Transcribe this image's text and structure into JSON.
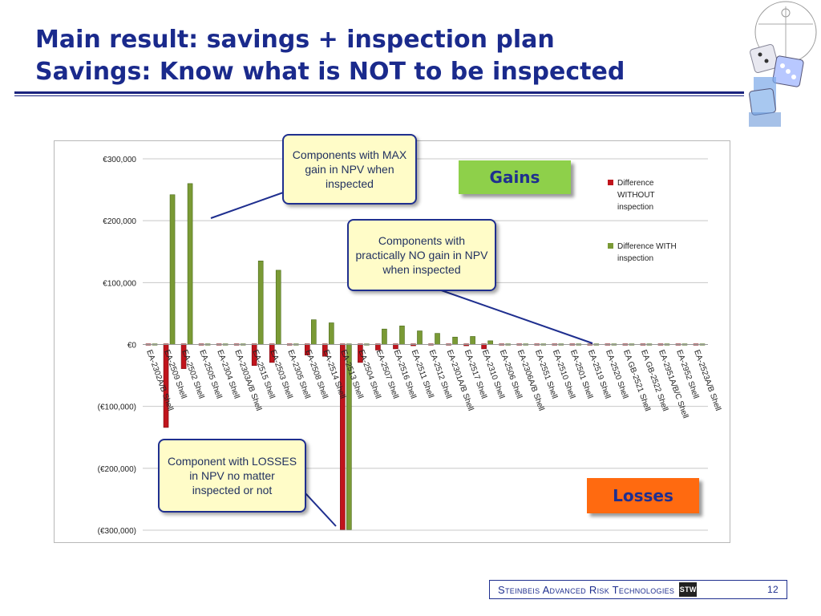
{
  "slide": {
    "title_line1": "Main result: savings + inspection plan",
    "title_line2": "Savings: Know what is NOT to be inspected",
    "page_number": "12",
    "footer_company": "Steinbeis Advanced Risk Technologies",
    "footer_logo_text": "STW"
  },
  "callouts": {
    "max_gain": "Components with MAX gain in NPV when inspected",
    "no_gain": "Components with practically NO gain in NPV when inspected",
    "losses": "Component with LOSSES in NPV no matter inspected or not"
  },
  "tags": {
    "gains": "Gains",
    "losses": "Losses"
  },
  "colors": {
    "without": "#c0141c",
    "with": "#7a9a35",
    "title": "#1a2a8c",
    "callout_border": "#1f2f8f"
  },
  "chart_data": {
    "type": "bar",
    "ylim": [
      -300000,
      300000
    ],
    "yticks": [
      "€300,000",
      "€200,000",
      "€100,000",
      "€0",
      "(€100,000)",
      "(€200,000)",
      "(€300,000)"
    ],
    "grid": true,
    "legend_position": "right",
    "categories": [
      "EA-2302A/B Shell",
      "EA-2509 Shell",
      "EA-2502 Shell",
      "EA-2505 Shell",
      "EA-2304 Shell",
      "EA-2303A/B Shell",
      "EA-2515 Shell",
      "EA-2503 Shell",
      "EA-2305 Shell",
      "EA-2508 Shell",
      "EA-2514 Shell",
      "EA-2513 Shell",
      "EA-2504 Shell",
      "EA-2507 Shell",
      "EA-2516 Shell",
      "EA-2511 Shell",
      "EA-2512 Shell",
      "EA-2301A/B Shell",
      "EA-2517 Shell",
      "EA-2310 Shell",
      "EA-2506 Shell",
      "EA-2306A/B Shell",
      "EA-2551 Shell",
      "EA-2510 Shell",
      "EA-2501 Shell",
      "EA-2519 Shell",
      "EA-2520 Shell",
      "EA GB-2521 Shell",
      "EA GB-2522 Shell",
      "EA-2951A/B/C Shell",
      "EA-2952 Shell",
      "EA-2523A/B Shell"
    ],
    "series": [
      {
        "name": "Difference WITHOUT inspection",
        "values": [
          0,
          -135000,
          -40000,
          0,
          0,
          0,
          -35000,
          -30000,
          0,
          -18000,
          -20000,
          -300000,
          -30000,
          -10000,
          -8000,
          -3000,
          0,
          0,
          -3000,
          -8000,
          0,
          0,
          0,
          0,
          0,
          0,
          0,
          0,
          0,
          0,
          0,
          0
        ]
      },
      {
        "name": "Difference WITH inspection",
        "values": [
          0,
          242000,
          260000,
          0,
          0,
          0,
          135000,
          120000,
          0,
          40000,
          35000,
          -300000,
          0,
          25000,
          30000,
          22000,
          18000,
          12000,
          13000,
          6000,
          0,
          0,
          0,
          0,
          0,
          0,
          0,
          0,
          0,
          0,
          0,
          0
        ]
      }
    ]
  }
}
